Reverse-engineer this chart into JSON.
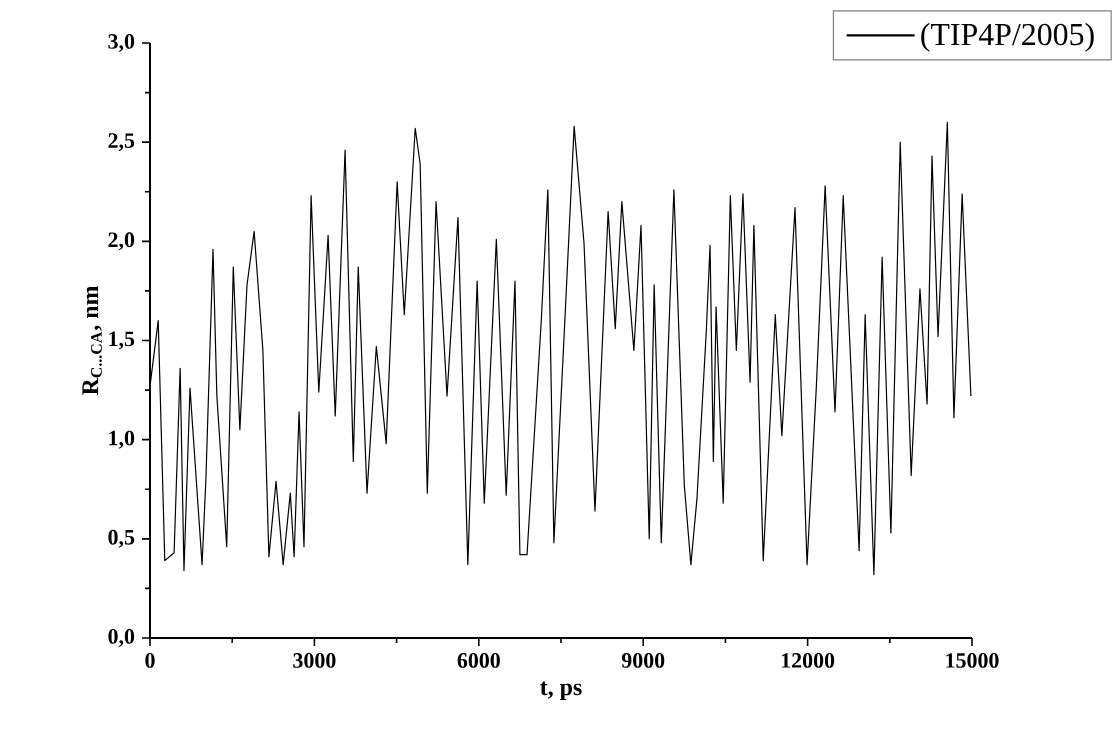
{
  "chart_data": {
    "type": "line",
    "xlabel": "t, ps",
    "ylabel": "R$_{C...CA}$, nm",
    "xlim": [
      0,
      15000
    ],
    "ylim": [
      0,
      3
    ],
    "xticks": [
      0,
      3000,
      6000,
      9000,
      12000,
      15000
    ],
    "yticks": [
      {
        "value": 0,
        "label": "0,0"
      },
      {
        "value": 0.5,
        "label": "0,5"
      },
      {
        "value": 1,
        "label": "1,0"
      },
      {
        "value": 1.5,
        "label": "1,5"
      },
      {
        "value": 2,
        "label": "2,0"
      },
      {
        "value": 2.5,
        "label": "2,5"
      },
      {
        "value": 3,
        "label": "3,0"
      }
    ],
    "legend": "top right",
    "grid": false,
    "marker": "none",
    "line_style": "solid",
    "series": [
      {
        "name": "(TIP4P/2005)",
        "color": "#000000",
        "x": [
          0,
          150,
          270,
          440,
          550,
          620,
          730,
          950,
          1020,
          1150,
          1220,
          1400,
          1520,
          1640,
          1770,
          1900,
          2060,
          2170,
          2300,
          2430,
          2560,
          2630,
          2720,
          2810,
          2940,
          3080,
          3250,
          3380,
          3560,
          3710,
          3800,
          3960,
          4130,
          4310,
          4510,
          4640,
          4840,
          4930,
          5060,
          5220,
          5420,
          5620,
          5800,
          5970,
          6100,
          6320,
          6500,
          6660,
          6750,
          6880,
          7140,
          7260,
          7370,
          7570,
          7740,
          7920,
          8120,
          8360,
          8490,
          8610,
          8830,
          8960,
          9110,
          9200,
          9330,
          9560,
          9750,
          9870,
          9980,
          10150,
          10220,
          10280,
          10330,
          10460,
          10590,
          10700,
          10820,
          10950,
          11020,
          11190,
          11410,
          11530,
          11770,
          11990,
          12160,
          12320,
          12500,
          12650,
          12940,
          13050,
          13210,
          13360,
          13520,
          13690,
          13890,
          14050,
          14180,
          14270,
          14380,
          14550,
          14670,
          14820,
          14980
        ],
        "values": [
          1.27,
          1.6,
          0.39,
          0.43,
          1.36,
          0.34,
          1.26,
          0.37,
          0.8,
          1.96,
          1.22,
          0.46,
          1.87,
          1.05,
          1.78,
          2.05,
          1.45,
          0.41,
          0.79,
          0.37,
          0.73,
          0.41,
          1.14,
          0.46,
          2.23,
          1.24,
          2.03,
          1.12,
          2.46,
          0.89,
          1.87,
          0.73,
          1.47,
          0.98,
          2.3,
          1.63,
          2.57,
          2.39,
          0.73,
          2.2,
          1.22,
          2.12,
          0.37,
          1.8,
          0.68,
          2.01,
          0.72,
          1.8,
          0.42,
          0.42,
          1.6,
          2.26,
          0.48,
          1.6,
          2.58,
          1.99,
          0.64,
          2.15,
          1.56,
          2.2,
          1.45,
          2.08,
          0.5,
          1.78,
          0.48,
          2.26,
          0.77,
          0.37,
          0.7,
          1.54,
          1.98,
          0.89,
          1.67,
          0.68,
          2.23,
          1.45,
          2.24,
          1.29,
          2.08,
          0.39,
          1.63,
          1.02,
          2.17,
          0.37,
          1.27,
          2.28,
          1.14,
          2.23,
          0.44,
          1.63,
          0.32,
          1.92,
          0.53,
          2.5,
          0.82,
          1.76,
          1.18,
          2.43,
          1.52,
          2.6,
          1.11,
          2.24,
          1.22
        ]
      }
    ]
  }
}
